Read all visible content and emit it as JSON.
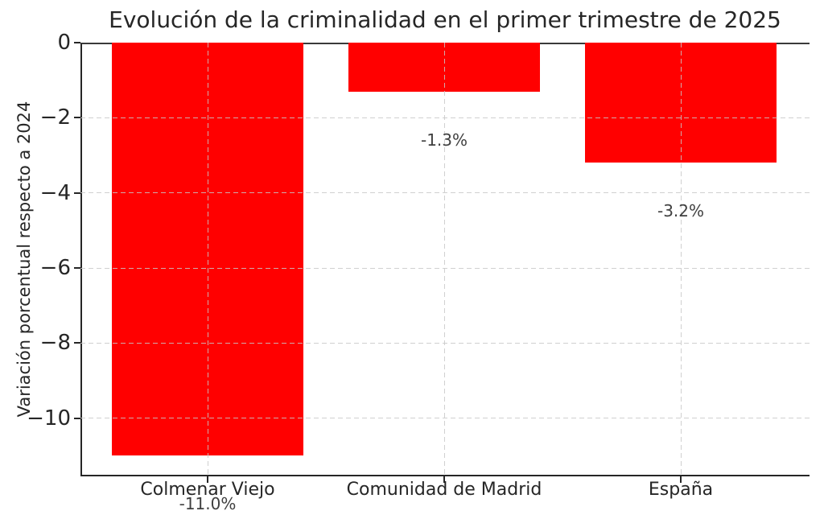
{
  "chart_data": {
    "type": "bar",
    "title": "Evolución de la criminalidad en el primer trimestre de 2025",
    "xlabel": "",
    "ylabel": "Variación porcentual respecto a 2024",
    "categories": [
      "Colmenar Viejo",
      "Comunidad de Madrid",
      "España"
    ],
    "values": [
      -11.0,
      -1.3,
      -3.2
    ],
    "bar_value_labels": [
      "-11.0%",
      "-1.3%",
      "-3.2%"
    ],
    "yticks": [
      0,
      -2,
      -4,
      -6,
      -8,
      -10
    ],
    "ytick_labels": [
      "0",
      "−2",
      "−4",
      "−6",
      "−8",
      "−10"
    ],
    "ylim": [
      -11.55,
      0
    ],
    "grid": true,
    "grid_style": "dashed",
    "legend": null,
    "colors": {
      "bar": "#ff0000",
      "text": "#262626",
      "annotation_text": "#404040",
      "grid": "#c8c8c8",
      "spine": "#262626",
      "background": "#ffffff"
    }
  }
}
